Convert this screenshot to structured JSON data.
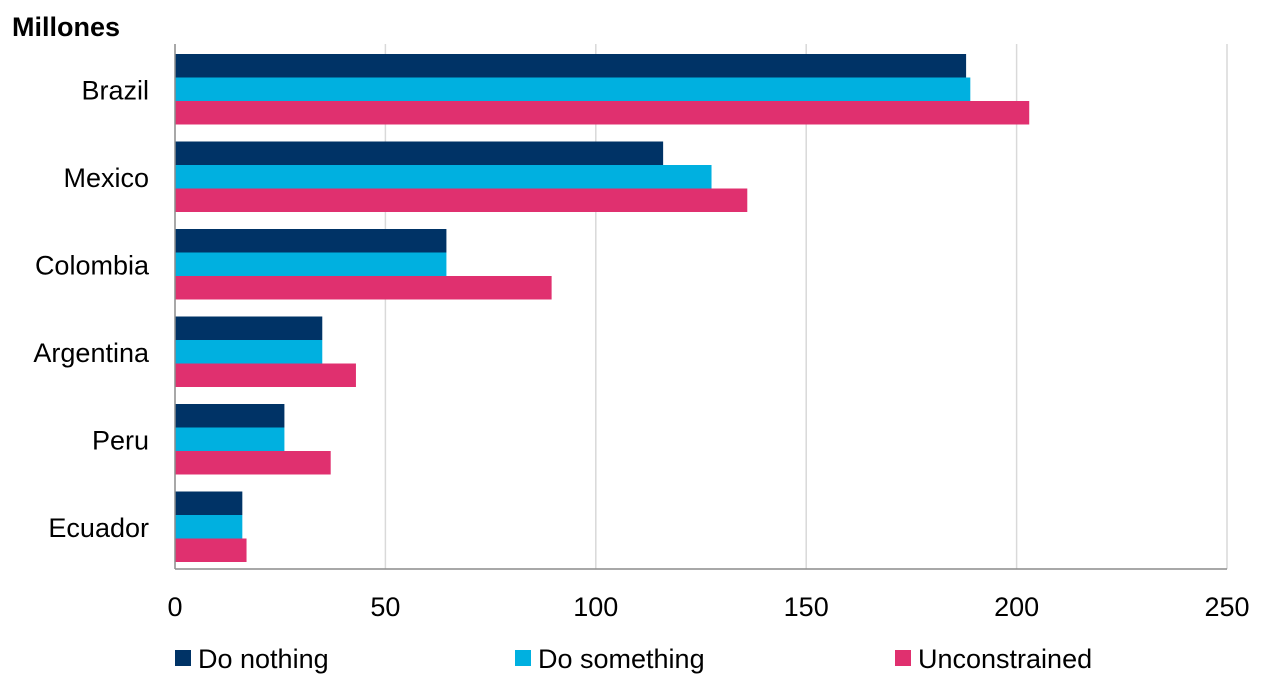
{
  "chart_data": {
    "type": "bar",
    "orientation": "horizontal",
    "unit_label": "Millones",
    "categories": [
      "Brazil",
      "Mexico",
      "Colombia",
      "Argentina",
      "Peru",
      "Ecuador"
    ],
    "series": [
      {
        "name": "Do nothing",
        "color": "#003366",
        "values": [
          188,
          116,
          64.5,
          35,
          26,
          16
        ]
      },
      {
        "name": "Do something",
        "color": "#00b0e0",
        "values": [
          189,
          127.5,
          64.5,
          35,
          26,
          16
        ]
      },
      {
        "name": "Unconstrained",
        "color": "#e0306f",
        "values": [
          203,
          136,
          89.5,
          43,
          37,
          17
        ]
      }
    ],
    "xlim": [
      0,
      250
    ],
    "xticks": [
      0,
      50,
      100,
      150,
      200,
      250
    ],
    "grid": true,
    "legend_position": "bottom"
  }
}
